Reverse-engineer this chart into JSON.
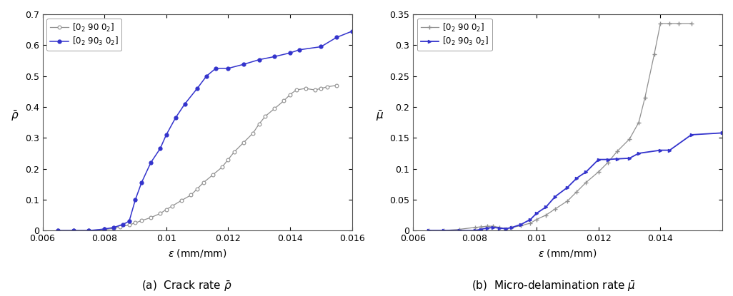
{
  "plot_a": {
    "title": "(a)  Crack rate $\\bar{\\rho}$",
    "ylabel": "$\\bar{\\rho}$",
    "xlabel": "$\\varepsilon$ (mm/mm)",
    "xlim": [
      0.006,
      0.016
    ],
    "ylim": [
      0.0,
      0.7
    ],
    "yticks": [
      0.0,
      0.1,
      0.2,
      0.3,
      0.4,
      0.5,
      0.6,
      0.7
    ],
    "xticks": [
      0.006,
      0.008,
      0.01,
      0.012,
      0.014,
      0.016
    ],
    "gray_x": [
      0.0065,
      0.007,
      0.0075,
      0.008,
      0.0083,
      0.0085,
      0.0088,
      0.009,
      0.0092,
      0.0095,
      0.0098,
      0.01,
      0.0102,
      0.0105,
      0.0108,
      0.011,
      0.0112,
      0.0115,
      0.0118,
      0.012,
      0.0122,
      0.0125,
      0.0128,
      0.013,
      0.0132,
      0.0135,
      0.0138,
      0.014,
      0.0142,
      0.0145,
      0.0148,
      0.015,
      0.0152,
      0.0155
    ],
    "gray_y": [
      0.0,
      0.0,
      0.0,
      0.003,
      0.007,
      0.012,
      0.018,
      0.025,
      0.032,
      0.042,
      0.055,
      0.068,
      0.08,
      0.098,
      0.115,
      0.135,
      0.155,
      0.18,
      0.205,
      0.23,
      0.255,
      0.285,
      0.315,
      0.345,
      0.37,
      0.395,
      0.42,
      0.44,
      0.455,
      0.46,
      0.455,
      0.46,
      0.465,
      0.47
    ],
    "blue_x": [
      0.0065,
      0.007,
      0.0075,
      0.008,
      0.0083,
      0.0086,
      0.0088,
      0.009,
      0.0092,
      0.0095,
      0.0098,
      0.01,
      0.0103,
      0.0106,
      0.011,
      0.0113,
      0.0116,
      0.012,
      0.0125,
      0.013,
      0.0135,
      0.014,
      0.0143,
      0.015,
      0.0155,
      0.016
    ],
    "blue_y": [
      0.0,
      0.0,
      0.0,
      0.005,
      0.01,
      0.02,
      0.03,
      0.1,
      0.155,
      0.22,
      0.265,
      0.31,
      0.365,
      0.41,
      0.46,
      0.5,
      0.525,
      0.525,
      0.538,
      0.553,
      0.563,
      0.575,
      0.585,
      0.595,
      0.625,
      0.645
    ],
    "gray_label": "$[0_2\\ 90\\ 0_2]$",
    "blue_label": "$[0_2\\ 90_3\\ 0_2]$",
    "gray_color": "#909090",
    "blue_color": "#3333cc"
  },
  "plot_b": {
    "title": "(b)  Micro-delamination rate $\\bar{\\mu}$",
    "ylabel": "$\\bar{\\mu}$",
    "xlabel": "$\\varepsilon$ (mm/mm)",
    "xlim": [
      0.006,
      0.016
    ],
    "ylim": [
      0.0,
      0.35
    ],
    "yticks": [
      0.0,
      0.05,
      0.1,
      0.15,
      0.2,
      0.25,
      0.3,
      0.35
    ],
    "xticks": [
      0.006,
      0.008,
      0.01,
      0.012,
      0.014
    ],
    "gray_x": [
      0.0065,
      0.007,
      0.0075,
      0.008,
      0.0082,
      0.0084,
      0.0086,
      0.0088,
      0.009,
      0.0092,
      0.0095,
      0.0098,
      0.01,
      0.0103,
      0.0106,
      0.011,
      0.0113,
      0.0116,
      0.012,
      0.0123,
      0.0126,
      0.013,
      0.0133,
      0.0135,
      0.0138,
      0.014,
      0.0143,
      0.0146,
      0.015
    ],
    "gray_y": [
      0.0,
      0.0,
      0.002,
      0.005,
      0.006,
      0.007,
      0.007,
      0.005,
      0.003,
      0.005,
      0.008,
      0.012,
      0.018,
      0.025,
      0.035,
      0.048,
      0.063,
      0.078,
      0.095,
      0.11,
      0.128,
      0.148,
      0.175,
      0.215,
      0.285,
      0.335,
      0.335,
      0.335,
      0.335
    ],
    "blue_x": [
      0.0065,
      0.007,
      0.0075,
      0.008,
      0.0082,
      0.0084,
      0.0086,
      0.0088,
      0.009,
      0.0092,
      0.0095,
      0.0098,
      0.01,
      0.0103,
      0.0106,
      0.011,
      0.0113,
      0.0116,
      0.012,
      0.0123,
      0.0126,
      0.013,
      0.0133,
      0.014,
      0.0143,
      0.015,
      0.016
    ],
    "blue_y": [
      0.0,
      0.0,
      0.0,
      0.0,
      0.002,
      0.004,
      0.005,
      0.004,
      0.003,
      0.005,
      0.01,
      0.018,
      0.028,
      0.038,
      0.055,
      0.07,
      0.085,
      0.095,
      0.115,
      0.115,
      0.116,
      0.117,
      0.125,
      0.13,
      0.13,
      0.155,
      0.158
    ],
    "gray_label": "$[0_2\\ 90\\ 0_2]$",
    "blue_label": "$[0_2\\ 90_3\\ 0_2]$",
    "gray_color": "#909090",
    "blue_color": "#3333cc"
  }
}
